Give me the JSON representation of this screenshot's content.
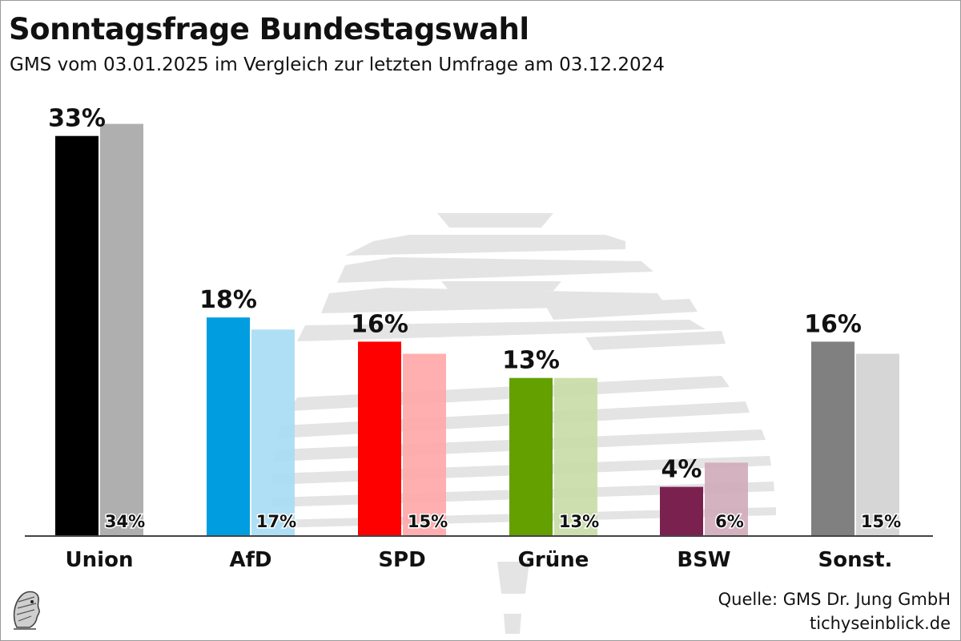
{
  "header": {
    "title": "Sonntagsfrage Bundestagswahl",
    "subtitle": "GMS vom 03.01.2025 im Vergleich zur letzten Umfrage am 03.12.2024"
  },
  "footer": {
    "source": "Quelle: GMS Dr. Jung GmbH",
    "site": "tichyseinblick.de"
  },
  "chart_data": {
    "type": "bar",
    "title": "Sonntagsfrage Bundestagswahl",
    "subtitle": "GMS vom 03.01.2025 im Vergleich zur letzten Umfrage am 03.12.2024",
    "categories": [
      "Union",
      "AfD",
      "SPD",
      "Grüne",
      "BSW",
      "Sonst."
    ],
    "series": [
      {
        "role": "current",
        "values": [
          33,
          18,
          16,
          13,
          4,
          16
        ],
        "labels": [
          "33%",
          "18%",
          "16%",
          "13%",
          "4%",
          "16%"
        ],
        "colors": [
          "#000000",
          "#009ee0",
          "#ff0000",
          "#64a000",
          "#7b2150",
          "#808080"
        ]
      },
      {
        "role": "previous",
        "values": [
          34,
          17,
          15,
          13,
          6,
          15
        ],
        "labels": [
          "34%",
          "17%",
          "15%",
          "13%",
          "6%",
          "15%"
        ],
        "colors": [
          "#a6a6a6",
          "#a6dcf3",
          "#ffa6a6",
          "#c8dca6",
          "#d0aab9",
          "#d2d2d2"
        ]
      }
    ],
    "ylim": [
      0,
      34
    ],
    "grid": false,
    "legend": "none"
  }
}
